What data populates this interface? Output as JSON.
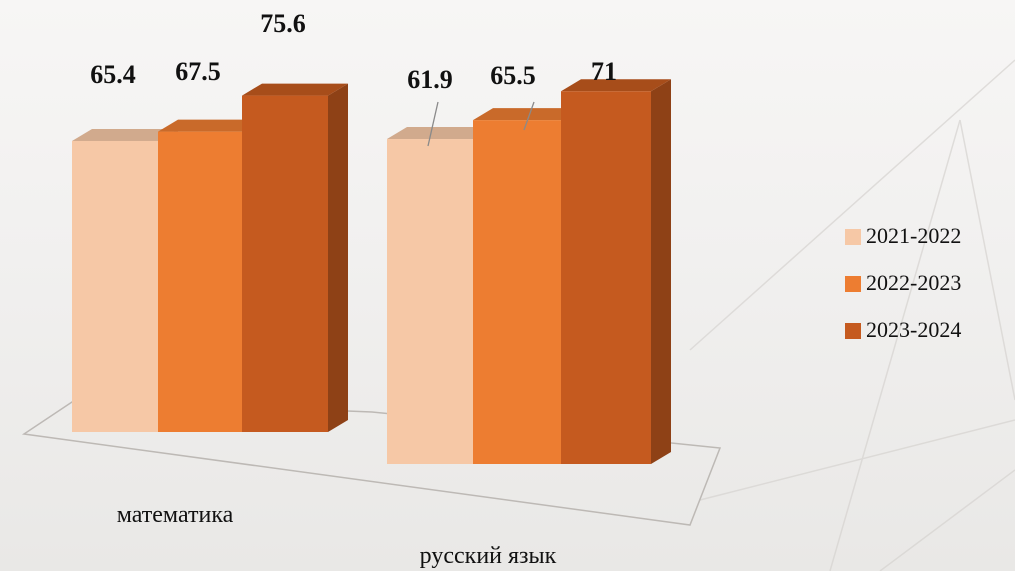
{
  "chart_data": {
    "type": "bar",
    "categories": [
      "математика",
      "русский язык"
    ],
    "series": [
      {
        "name": "2021-2022",
        "values": [
          65.4,
          61.9
        ],
        "color": "#f6c8a6"
      },
      {
        "name": "2022-2023",
        "values": [
          67.5,
          65.5
        ],
        "color": "#ed7d31"
      },
      {
        "name": "2023-2024",
        "values": [
          75.6,
          71
        ],
        "color": "#c55a1f"
      }
    ],
    "value_labels": [
      [
        "65.4",
        "61.9"
      ],
      [
        "67.5",
        "65.5"
      ],
      [
        "75.6",
        "71"
      ]
    ],
    "title": "",
    "xlabel": "",
    "ylabel": "",
    "style": "3d-column",
    "grid": false,
    "legend_position": "right"
  }
}
